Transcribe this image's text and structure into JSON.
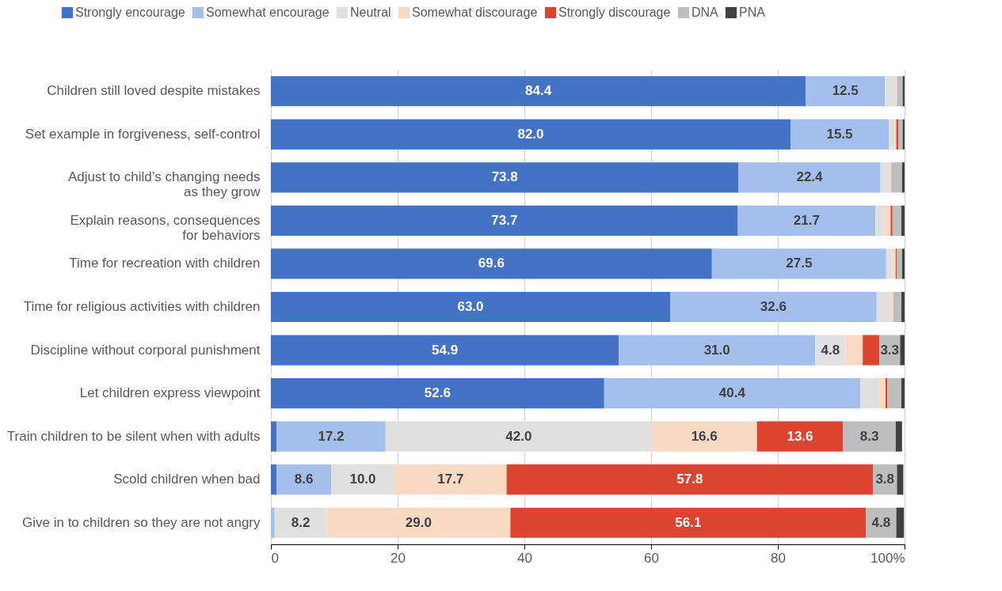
{
  "chart_data": {
    "type": "bar",
    "orientation": "horizontal",
    "stacked": true,
    "legend": "top",
    "grid": "x",
    "categories": [
      "Children still loved despite mistakes",
      "Set example in forgiveness, self-control",
      "Adjust to child’s changing needs\nas they grow",
      "Explain reasons, consequences\nfor behaviors",
      "Time for recreation with children",
      "Time for religious activities with children",
      "Discipline without corporal punishment",
      "Let children express viewpoint",
      "Train children to be silent when with adults",
      "Scold children when bad",
      "Give in to children so they are not angry"
    ],
    "xlim": [
      0,
      100
    ],
    "xticks": [
      0,
      20,
      40,
      60,
      80,
      {
        "value": 100,
        "label": "100%"
      }
    ],
    "series": [
      {
        "name": "Strongly encourage",
        "color": "#4472c4",
        "values": [
          84.4,
          82.0,
          73.8,
          73.7,
          69.6,
          63.0,
          54.9,
          52.6,
          0.9,
          0.9,
          0
        ],
        "value_labels": [
          "84.4",
          "82.0",
          "73.8",
          "73.7",
          "69.6",
          "63.0",
          "54.9",
          "52.6",
          null,
          null,
          null
        ]
      },
      {
        "name": "Somewhat encourage",
        "color": "#a4bfec",
        "values": [
          12.5,
          15.5,
          22.4,
          21.7,
          27.5,
          32.6,
          31.0,
          40.4,
          17.2,
          8.6,
          0.6
        ],
        "value_labels": [
          "12.5",
          "15.5",
          "22.4",
          "21.7",
          "27.5",
          "32.6",
          "31.0",
          "40.4",
          "17.2",
          "8.6",
          null
        ]
      },
      {
        "name": "Neutral",
        "color": "#e0e0e0",
        "values": [
          1.6,
          0.9,
          1.4,
          1.4,
          1.0,
          2.1,
          4.8,
          2.9,
          42.0,
          10.0,
          8.2
        ],
        "value_labels": [
          null,
          null,
          null,
          null,
          null,
          null,
          "4.8",
          null,
          "42.0",
          "10.0",
          "8.2"
        ]
      },
      {
        "name": "Somewhat discourage",
        "color": "#f7d9c4",
        "values": [
          0.3,
          0.3,
          0.3,
          1.0,
          0.5,
          0.5,
          2.7,
          1.1,
          16.6,
          17.7,
          29.0
        ],
        "value_labels": [
          null,
          null,
          null,
          null,
          null,
          null,
          null,
          null,
          "16.6",
          "17.7",
          "29.0"
        ]
      },
      {
        "name": "Strongly discourage",
        "color": "#db4430",
        "values": [
          0,
          0.3,
          0,
          0.3,
          0.2,
          0,
          2.6,
          0.3,
          13.6,
          57.8,
          56.1
        ],
        "value_labels": [
          null,
          null,
          null,
          null,
          null,
          null,
          null,
          null,
          "13.6",
          "57.8",
          "56.1"
        ]
      },
      {
        "name": "DNA",
        "color": "#bdbdbd",
        "values": [
          0.9,
          0.7,
          1.7,
          1.4,
          0.8,
          1.3,
          3.3,
          2.2,
          8.3,
          3.8,
          4.8
        ],
        "value_labels": [
          null,
          null,
          null,
          null,
          null,
          null,
          "3.3",
          null,
          "8.3",
          "3.8",
          "4.8"
        ]
      },
      {
        "name": "PNA",
        "color": "#404040",
        "values": [
          0.3,
          0.3,
          0.4,
          0.5,
          0.4,
          0.5,
          0.7,
          0.5,
          1.0,
          1.0,
          1.2
        ],
        "value_labels": [
          null,
          null,
          null,
          null,
          null,
          null,
          null,
          null,
          null,
          null,
          null
        ]
      }
    ]
  }
}
